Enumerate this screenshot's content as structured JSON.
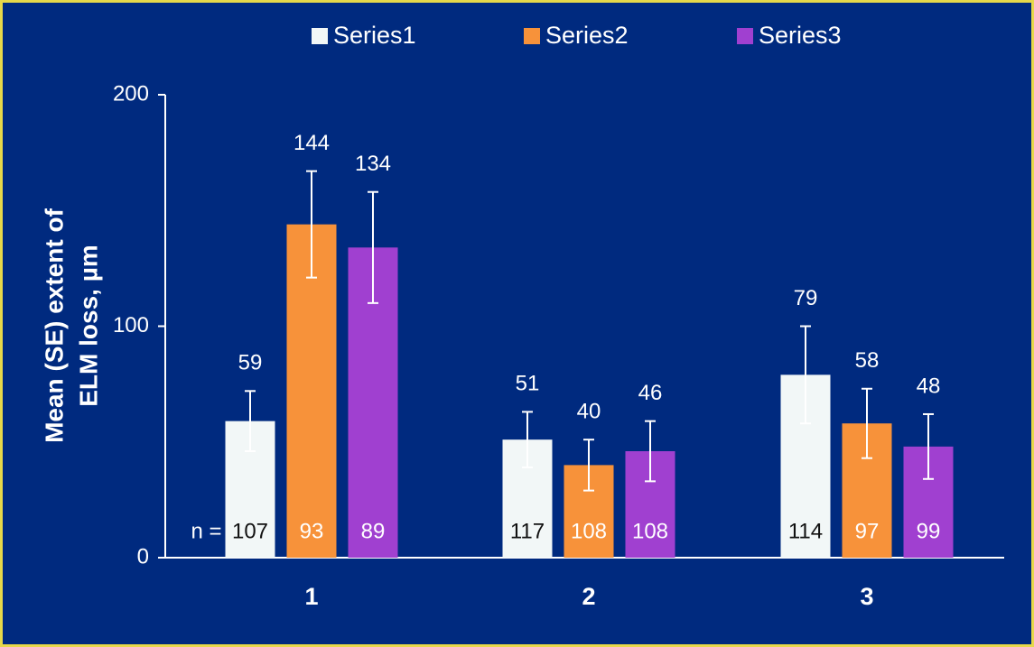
{
  "chart_data": {
    "type": "bar",
    "ylabel": [
      "Mean (SE) extent of",
      "ELM loss, µm"
    ],
    "categories": [
      "1",
      "2",
      "3"
    ],
    "n_label": "n =",
    "series": [
      {
        "name": "Series1",
        "color": "#f2f7f7",
        "n_color": "#111111",
        "values": [
          59,
          51,
          79
        ],
        "errors": [
          13,
          12,
          21
        ],
        "n": [
          107,
          117,
          114
        ]
      },
      {
        "name": "Series2",
        "color": "#f7923a",
        "n_color": "#ffffff",
        "values": [
          144,
          40,
          58
        ],
        "errors": [
          23,
          11,
          15
        ],
        "n": [
          93,
          108,
          97
        ]
      },
      {
        "name": "Series3",
        "color": "#a040d0",
        "n_color": "#ffffff",
        "values": [
          134,
          46,
          48
        ],
        "errors": [
          24,
          13,
          14
        ],
        "n": [
          89,
          108,
          99
        ]
      }
    ],
    "ylim": [
      0,
      200
    ],
    "yticks": [
      0,
      100,
      200
    ],
    "grid": false
  }
}
